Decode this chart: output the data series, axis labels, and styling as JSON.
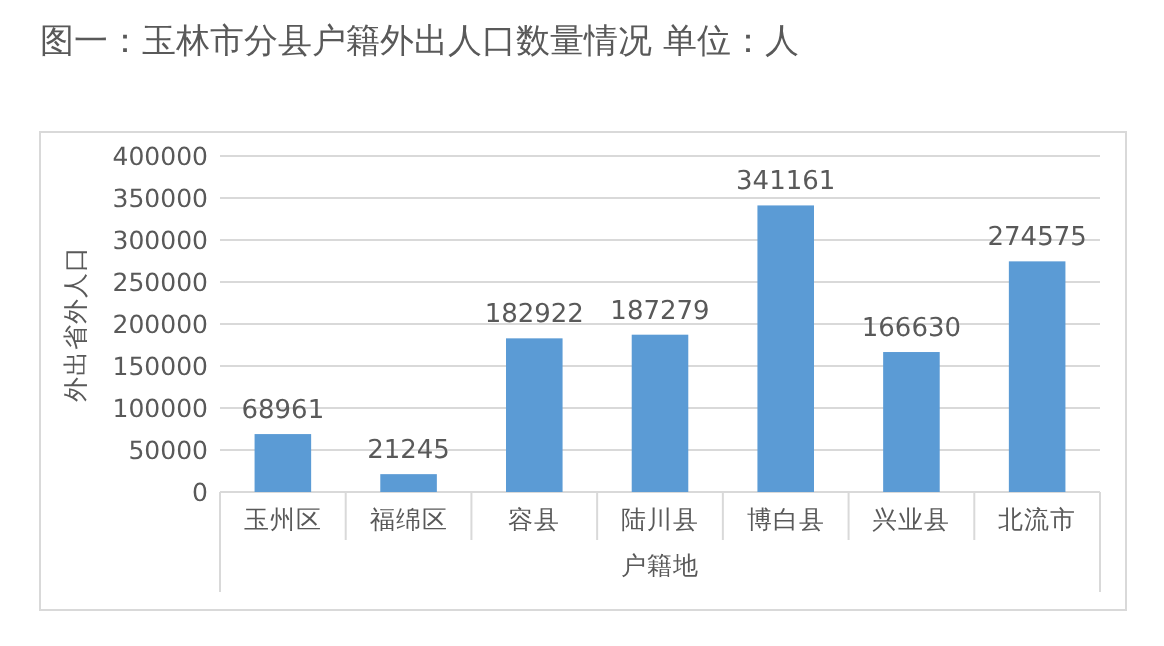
{
  "chart_data": {
    "type": "bar",
    "title": "图一：玉林市分县户籍外出人口数量情况 单位：人",
    "xlabel": "户籍地",
    "ylabel": "外出省外人口",
    "categories": [
      "玉州区",
      "福绵区",
      "容县",
      "陆川县",
      "博白县",
      "兴业县",
      "北流市"
    ],
    "values": [
      68961,
      21245,
      182922,
      187279,
      341161,
      166630,
      274575
    ],
    "color": "#5b9bd5",
    "ylim": [
      0,
      400000
    ],
    "yticks": [
      0,
      50000,
      100000,
      150000,
      200000,
      250000,
      300000,
      350000,
      400000
    ],
    "grid": "y",
    "data_labels": true
  }
}
